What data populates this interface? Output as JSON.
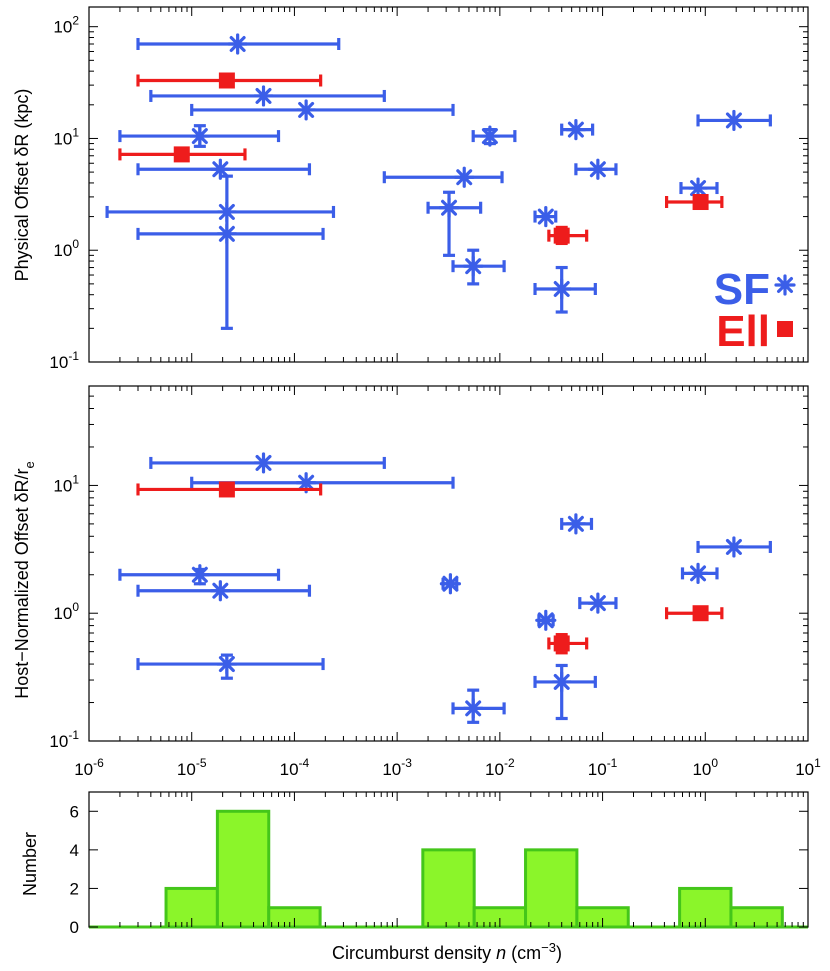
{
  "colors": {
    "sf": "#3b5ee8",
    "ell": "#ee1c1c",
    "hist_fill": "#8bf52a",
    "hist_edge": "#44c61a",
    "axis": "#000000"
  },
  "chart_data": [
    {
      "id": "physical",
      "type": "scatter",
      "xscale": "log",
      "yscale": "log",
      "xlim": [
        1e-06,
        10
      ],
      "ylim": [
        0.1,
        150
      ],
      "ylabel": "Physical Offset δR (kpc)",
      "y_ticks": [
        {
          "base": "10",
          "exp": "-1",
          "value": 0.1
        },
        {
          "base": "10",
          "exp": "0",
          "value": 1
        },
        {
          "base": "10",
          "exp": "1",
          "value": 10
        },
        {
          "base": "10",
          "exp": "2",
          "value": 100
        }
      ],
      "legend": {
        "position": "bottom-right",
        "entries": [
          {
            "label": "SF",
            "series": "SF",
            "marker": "asterisk"
          },
          {
            "label": "Ell",
            "series": "Ell",
            "marker": "square"
          }
        ]
      },
      "series": [
        {
          "name": "SF",
          "marker": "asterisk",
          "points": [
            {
              "x": 2.8e-05,
              "y": 70,
              "xlo": 3e-06,
              "xhi": 0.00027
            },
            {
              "x": 5e-05,
              "y": 24,
              "xlo": 4e-06,
              "xhi": 0.00075
            },
            {
              "x": 0.00013,
              "y": 18,
              "xlo": 1e-05,
              "xhi": 0.0035
            },
            {
              "x": 1.2e-05,
              "y": 10.5,
              "xlo": 2e-06,
              "xhi": 7e-05,
              "ylo": 8.5,
              "yhi": 13
            },
            {
              "x": 1.9e-05,
              "y": 5.3,
              "xlo": 3e-06,
              "xhi": 0.00014
            },
            {
              "x": 2.2e-05,
              "y": 2.2,
              "xlo": 1.5e-06,
              "xhi": 0.00024,
              "ylo": 0.2,
              "yhi": 4.6
            },
            {
              "x": 2.2e-05,
              "y": 1.4,
              "xlo": 3e-06,
              "xhi": 0.00019
            },
            {
              "x": 0.0045,
              "y": 4.5,
              "xlo": 0.00075,
              "xhi": 0.0105
            },
            {
              "x": 0.0032,
              "y": 2.4,
              "xlo": 0.002,
              "xhi": 0.0065,
              "ylo": 0.9,
              "yhi": 3.3
            },
            {
              "x": 0.008,
              "y": 10.5,
              "xlo": 0.0055,
              "xhi": 0.014,
              "ylo": 9,
              "yhi": 12
            },
            {
              "x": 0.0055,
              "y": 0.72,
              "xlo": 0.0035,
              "xhi": 0.011,
              "ylo": 0.5,
              "yhi": 1.0
            },
            {
              "x": 0.028,
              "y": 2.0,
              "xlo": 0.022,
              "xhi": 0.035
            },
            {
              "x": 0.055,
              "y": 12,
              "xlo": 0.04,
              "xhi": 0.08
            },
            {
              "x": 0.09,
              "y": 5.3,
              "xlo": 0.055,
              "xhi": 0.135
            },
            {
              "x": 0.04,
              "y": 0.45,
              "xlo": 0.022,
              "xhi": 0.085,
              "ylo": 0.28,
              "yhi": 0.7
            },
            {
              "x": 1.9,
              "y": 14.5,
              "xlo": 0.85,
              "xhi": 4.3
            },
            {
              "x": 0.85,
              "y": 3.6,
              "xlo": 0.58,
              "xhi": 1.3
            }
          ]
        },
        {
          "name": "Ell",
          "marker": "square",
          "points": [
            {
              "x": 2.2e-05,
              "y": 33,
              "xlo": 3e-06,
              "xhi": 0.00018
            },
            {
              "x": 8e-06,
              "y": 7.2,
              "xlo": 2e-06,
              "xhi": 3.3e-05
            },
            {
              "x": 0.04,
              "y": 1.35,
              "xlo": 0.03,
              "xhi": 0.07,
              "ylo": 1.15,
              "yhi": 1.6
            },
            {
              "x": 0.9,
              "y": 2.7,
              "xlo": 0.42,
              "xhi": 1.45
            }
          ]
        }
      ]
    },
    {
      "id": "normalized",
      "type": "scatter",
      "xscale": "log",
      "yscale": "log",
      "xlim": [
        1e-06,
        10
      ],
      "ylim": [
        0.1,
        60
      ],
      "ylabel": "Host−Normalized Offset δR/r",
      "ylabel_sub": "e",
      "y_ticks": [
        {
          "base": "10",
          "exp": "-1",
          "value": 0.1
        },
        {
          "base": "10",
          "exp": "0",
          "value": 1
        },
        {
          "base": "10",
          "exp": "1",
          "value": 10
        }
      ],
      "x_ticks": [
        {
          "base": "10",
          "exp": "-6",
          "value": 1e-06
        },
        {
          "base": "10",
          "exp": "-5",
          "value": 1e-05
        },
        {
          "base": "10",
          "exp": "-4",
          "value": 0.0001
        },
        {
          "base": "10",
          "exp": "-3",
          "value": 0.001
        },
        {
          "base": "10",
          "exp": "-2",
          "value": 0.01
        },
        {
          "base": "10",
          "exp": "-1",
          "value": 0.1
        },
        {
          "base": "10",
          "exp": "0",
          "value": 1
        },
        {
          "base": "10",
          "exp": "1",
          "value": 10
        }
      ],
      "series": [
        {
          "name": "SF",
          "marker": "asterisk",
          "points": [
            {
              "x": 5e-05,
              "y": 15,
              "xlo": 4e-06,
              "xhi": 0.00075
            },
            {
              "x": 0.00013,
              "y": 10.5,
              "xlo": 1e-05,
              "xhi": 0.0035
            },
            {
              "x": 1.2e-05,
              "y": 2.0,
              "xlo": 2e-06,
              "xhi": 7e-05,
              "ylo": 1.7,
              "yhi": 2.2
            },
            {
              "x": 1.9e-05,
              "y": 1.5,
              "xlo": 3e-06,
              "xhi": 0.00014
            },
            {
              "x": 2.2e-05,
              "y": 0.4,
              "xlo": 3e-06,
              "xhi": 0.00019,
              "ylo": 0.31,
              "yhi": 0.47
            },
            {
              "x": 0.0033,
              "y": 1.7,
              "xlo": 0.0028,
              "xhi": 0.0038
            },
            {
              "x": 0.0055,
              "y": 0.18,
              "xlo": 0.0035,
              "xhi": 0.011,
              "ylo": 0.14,
              "yhi": 0.25
            },
            {
              "x": 0.028,
              "y": 0.88,
              "xlo": 0.024,
              "xhi": 0.033
            },
            {
              "x": 0.055,
              "y": 5.0,
              "xlo": 0.04,
              "xhi": 0.078
            },
            {
              "x": 0.09,
              "y": 1.2,
              "xlo": 0.06,
              "xhi": 0.135
            },
            {
              "x": 0.04,
              "y": 0.29,
              "xlo": 0.022,
              "xhi": 0.085,
              "ylo": 0.15,
              "yhi": 0.39
            },
            {
              "x": 1.9,
              "y": 3.3,
              "xlo": 0.85,
              "xhi": 4.3
            },
            {
              "x": 0.85,
              "y": 2.05,
              "xlo": 0.6,
              "xhi": 1.3
            }
          ]
        },
        {
          "name": "Ell",
          "marker": "square",
          "points": [
            {
              "x": 2.2e-05,
              "y": 9.3,
              "xlo": 3e-06,
              "xhi": 0.00018
            },
            {
              "x": 0.04,
              "y": 0.58,
              "xlo": 0.03,
              "xhi": 0.07,
              "ylo": 0.49,
              "yhi": 0.68
            },
            {
              "x": 0.9,
              "y": 1.0,
              "xlo": 0.42,
              "xhi": 1.45
            }
          ]
        }
      ]
    },
    {
      "id": "histogram",
      "type": "bar",
      "xscale": "log",
      "xlim": [
        1e-06,
        10
      ],
      "ylim": [
        0,
        7
      ],
      "ylabel": "Number",
      "xlabel_pre": "Circumburst density ",
      "xlabel_var": "n",
      "xlabel_unit_open": " (cm",
      "xlabel_unit_exp": "−3",
      "xlabel_unit_close": ")",
      "y_ticks": [
        {
          "label": "0",
          "value": 0
        },
        {
          "label": "2",
          "value": 2
        },
        {
          "label": "4",
          "value": 4
        },
        {
          "label": "6",
          "value": 6
        }
      ],
      "bin_log_edges": [
        -5.25,
        -4.75,
        -4.25,
        -3.75,
        -3.25,
        -2.75,
        -2.25,
        -1.75,
        -1.25,
        -0.75,
        -0.25,
        0.25,
        0.75
      ],
      "counts": [
        2,
        6,
        1,
        0,
        0,
        4,
        1,
        4,
        1,
        0,
        2,
        1
      ]
    }
  ]
}
